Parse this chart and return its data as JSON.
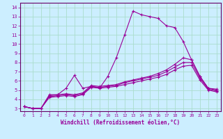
{
  "xlabel": "Windchill (Refroidissement éolien,°C)",
  "bg_color": "#cceeff",
  "grid_color": "#aaddcc",
  "line_color": "#990099",
  "spine_color": "#660066",
  "xlim": [
    -0.5,
    23.5
  ],
  "ylim": [
    2.7,
    14.5
  ],
  "xticks": [
    0,
    1,
    2,
    3,
    4,
    5,
    6,
    7,
    8,
    9,
    10,
    11,
    12,
    13,
    14,
    15,
    16,
    17,
    18,
    19,
    20,
    21,
    22,
    23
  ],
  "yticks": [
    3,
    4,
    5,
    6,
    7,
    8,
    9,
    10,
    11,
    12,
    13,
    14
  ],
  "lines": [
    {
      "x": [
        0,
        1,
        2,
        3,
        4,
        5,
        6,
        7,
        8,
        9,
        10,
        11,
        12,
        13,
        14,
        15,
        16,
        17,
        18,
        19,
        20,
        21,
        22,
        23
      ],
      "y": [
        3.2,
        3.0,
        3.0,
        4.5,
        4.5,
        5.2,
        6.6,
        5.2,
        5.4,
        5.2,
        6.5,
        8.5,
        11.0,
        13.6,
        13.2,
        13.0,
        12.8,
        12.0,
        11.8,
        10.3,
        8.3,
        6.5,
        5.2,
        5.1
      ]
    },
    {
      "x": [
        0,
        1,
        2,
        3,
        4,
        5,
        6,
        7,
        8,
        9,
        10,
        11,
        12,
        13,
        14,
        15,
        16,
        17,
        18,
        19,
        20,
        21,
        22,
        23
      ],
      "y": [
        3.2,
        3.0,
        3.0,
        4.4,
        4.5,
        4.6,
        4.5,
        4.7,
        5.5,
        5.4,
        5.5,
        5.6,
        5.9,
        6.1,
        6.3,
        6.5,
        6.8,
        7.2,
        7.8,
        8.5,
        8.3,
        6.5,
        5.2,
        5.0
      ]
    },
    {
      "x": [
        0,
        1,
        2,
        3,
        4,
        5,
        6,
        7,
        8,
        9,
        10,
        11,
        12,
        13,
        14,
        15,
        16,
        17,
        18,
        19,
        20,
        21,
        22,
        23
      ],
      "y": [
        3.2,
        3.0,
        3.0,
        4.3,
        4.4,
        4.5,
        4.4,
        4.6,
        5.4,
        5.3,
        5.4,
        5.5,
        5.8,
        6.0,
        6.2,
        6.4,
        6.6,
        7.0,
        7.5,
        8.0,
        8.0,
        6.3,
        5.1,
        4.9
      ]
    },
    {
      "x": [
        0,
        1,
        2,
        3,
        4,
        5,
        6,
        7,
        8,
        9,
        10,
        11,
        12,
        13,
        14,
        15,
        16,
        17,
        18,
        19,
        20,
        21,
        22,
        23
      ],
      "y": [
        3.2,
        3.0,
        3.0,
        4.2,
        4.3,
        4.4,
        4.3,
        4.5,
        5.3,
        5.2,
        5.3,
        5.4,
        5.6,
        5.8,
        6.0,
        6.2,
        6.4,
        6.7,
        7.2,
        7.6,
        7.7,
        6.1,
        5.0,
        4.8
      ]
    }
  ]
}
